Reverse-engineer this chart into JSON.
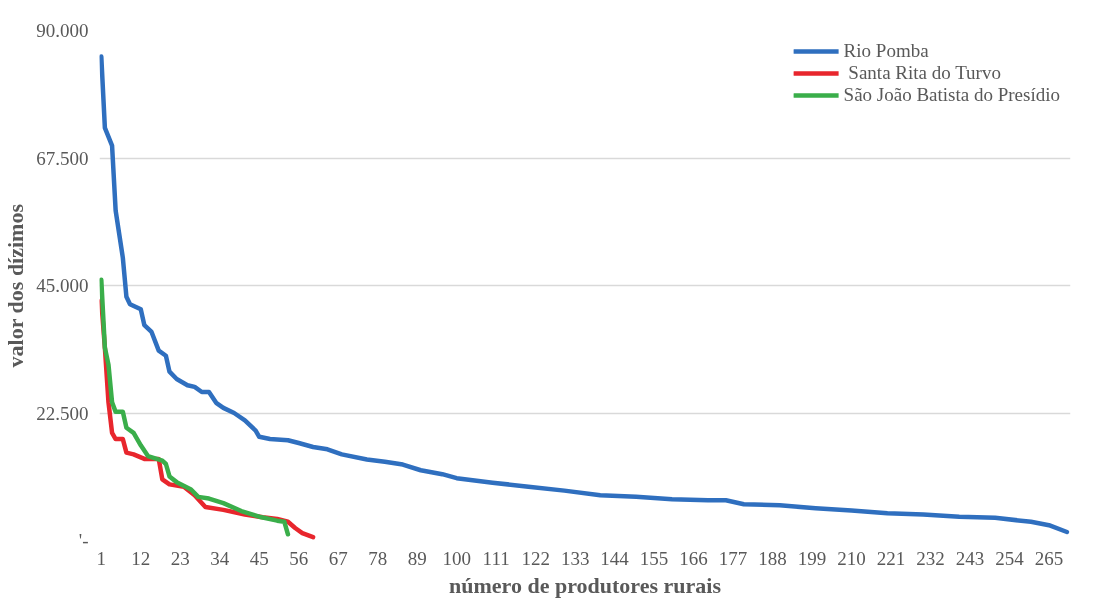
{
  "chart_data": {
    "type": "line",
    "xlabel": "número de produtores rurais",
    "ylabel": "valor dos dízimos",
    "xlim": [
      0.5,
      271
    ],
    "xticks": [
      1,
      12,
      23,
      34,
      45,
      56,
      67,
      78,
      89,
      100,
      111,
      122,
      133,
      144,
      155,
      166,
      177,
      188,
      199,
      210,
      221,
      232,
      243,
      254,
      265
    ],
    "ylim": [
      0,
      90000
    ],
    "yticks": [
      {
        "value": 0,
        "label": "'-"
      },
      {
        "value": 22500,
        "label": "22.500"
      },
      {
        "value": 45000,
        "label": "45.000"
      },
      {
        "value": 67500,
        "label": "67.500"
      },
      {
        "value": 90000,
        "label": "90.000"
      }
    ],
    "grid": "y",
    "legend": "top right",
    "marker": "none",
    "line_style": "solid",
    "series": [
      {
        "name": "Rio Pomba",
        "color": "#2f6fbf",
        "x": [
          1,
          2,
          4,
          5,
          7,
          8,
          9,
          12,
          13,
          15,
          17,
          19,
          20,
          22,
          25,
          27,
          29,
          31,
          33,
          35,
          38,
          41,
          44,
          45,
          48,
          53,
          56,
          60,
          64,
          68,
          75,
          80,
          85,
          90,
          96,
          100,
          110,
          120,
          130,
          140,
          150,
          160,
          170,
          175,
          180,
          190,
          200,
          210,
          220,
          230,
          240,
          250,
          260,
          265,
          270
        ],
        "values": [
          85400,
          72800,
          69700,
          58200,
          49900,
          43000,
          41700,
          40800,
          38000,
          36800,
          33500,
          32600,
          29800,
          28500,
          27400,
          27100,
          26200,
          26200,
          24300,
          23400,
          22500,
          21200,
          19400,
          18300,
          17900,
          17700,
          17200,
          16500,
          16100,
          15200,
          14300,
          13900,
          13400,
          12400,
          11700,
          11000,
          10200,
          9500,
          8800,
          8000,
          7700,
          7300,
          7100,
          7100,
          6400,
          6200,
          5700,
          5300,
          4800,
          4600,
          4200,
          4000,
          3300,
          2700,
          1500
        ]
      },
      {
        "name": " Santa Rita do Turvo",
        "color": "#e8262d",
        "x": [
          1,
          2,
          3,
          4,
          5,
          7,
          8,
          10,
          13,
          17,
          18,
          20,
          24,
          27,
          30,
          35,
          41,
          46,
          50,
          53,
          55,
          57,
          60
        ],
        "values": [
          42300,
          34000,
          24400,
          19000,
          17900,
          17900,
          15500,
          15200,
          14400,
          14400,
          10800,
          9900,
          9500,
          8000,
          5900,
          5400,
          4600,
          4100,
          3800,
          3300,
          2200,
          1300,
          600
        ]
      },
      {
        "name": "São João Batista do Presídio",
        "color": "#3aae4a",
        "x": [
          1,
          2,
          3,
          4,
          5,
          7,
          8,
          10,
          12,
          14,
          18,
          19,
          20,
          22,
          26,
          28,
          31,
          35,
          40,
          45,
          50,
          52,
          53
        ],
        "values": [
          46000,
          34000,
          31000,
          24400,
          22700,
          22700,
          19900,
          19000,
          16800,
          14900,
          14100,
          13500,
          11300,
          10300,
          9000,
          7700,
          7400,
          6600,
          5200,
          4200,
          3500,
          3300,
          1100
        ]
      }
    ]
  }
}
